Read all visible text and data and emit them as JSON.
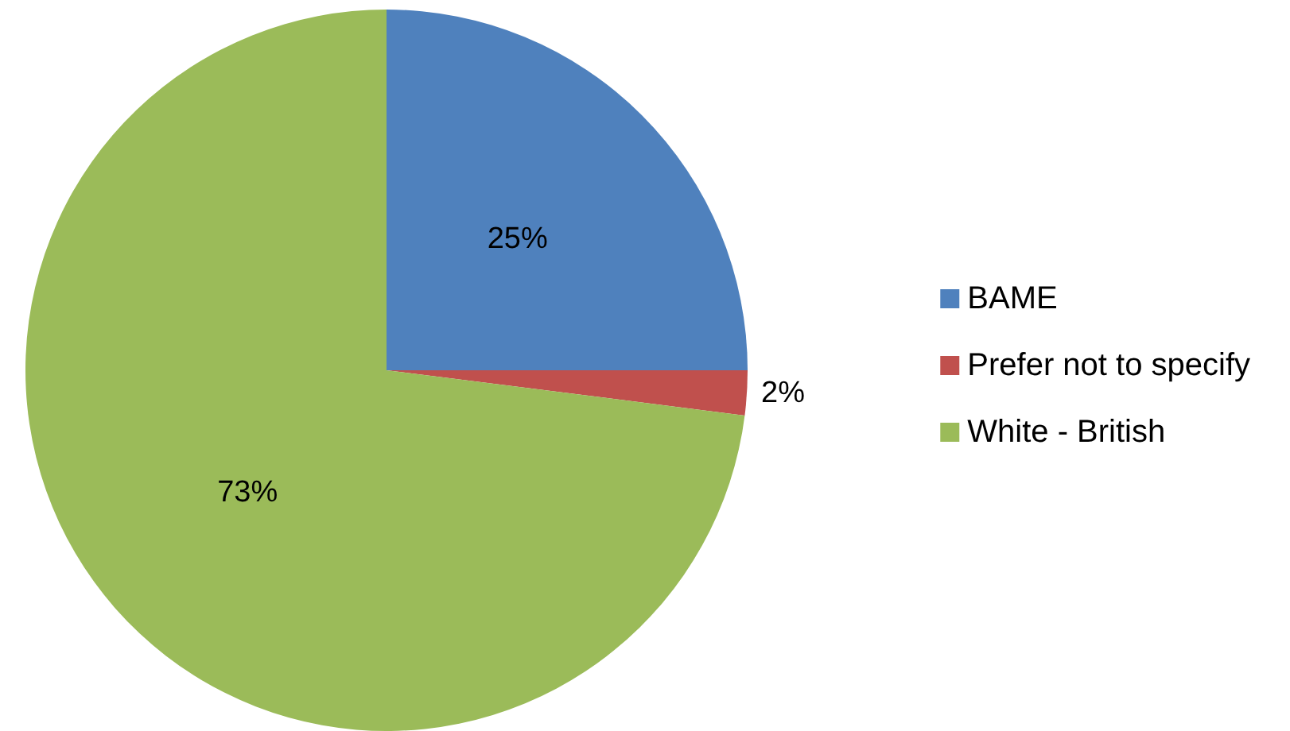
{
  "chart_data": {
    "type": "pie",
    "categories": [
      "BAME",
      "Prefer not to specify",
      "White - British"
    ],
    "values": [
      25,
      2,
      73
    ],
    "colors": [
      "#4f81bd",
      "#c0504d",
      "#9bbb59"
    ],
    "value_labels": [
      "25%",
      "2%",
      "73%"
    ],
    "legend": "right"
  }
}
